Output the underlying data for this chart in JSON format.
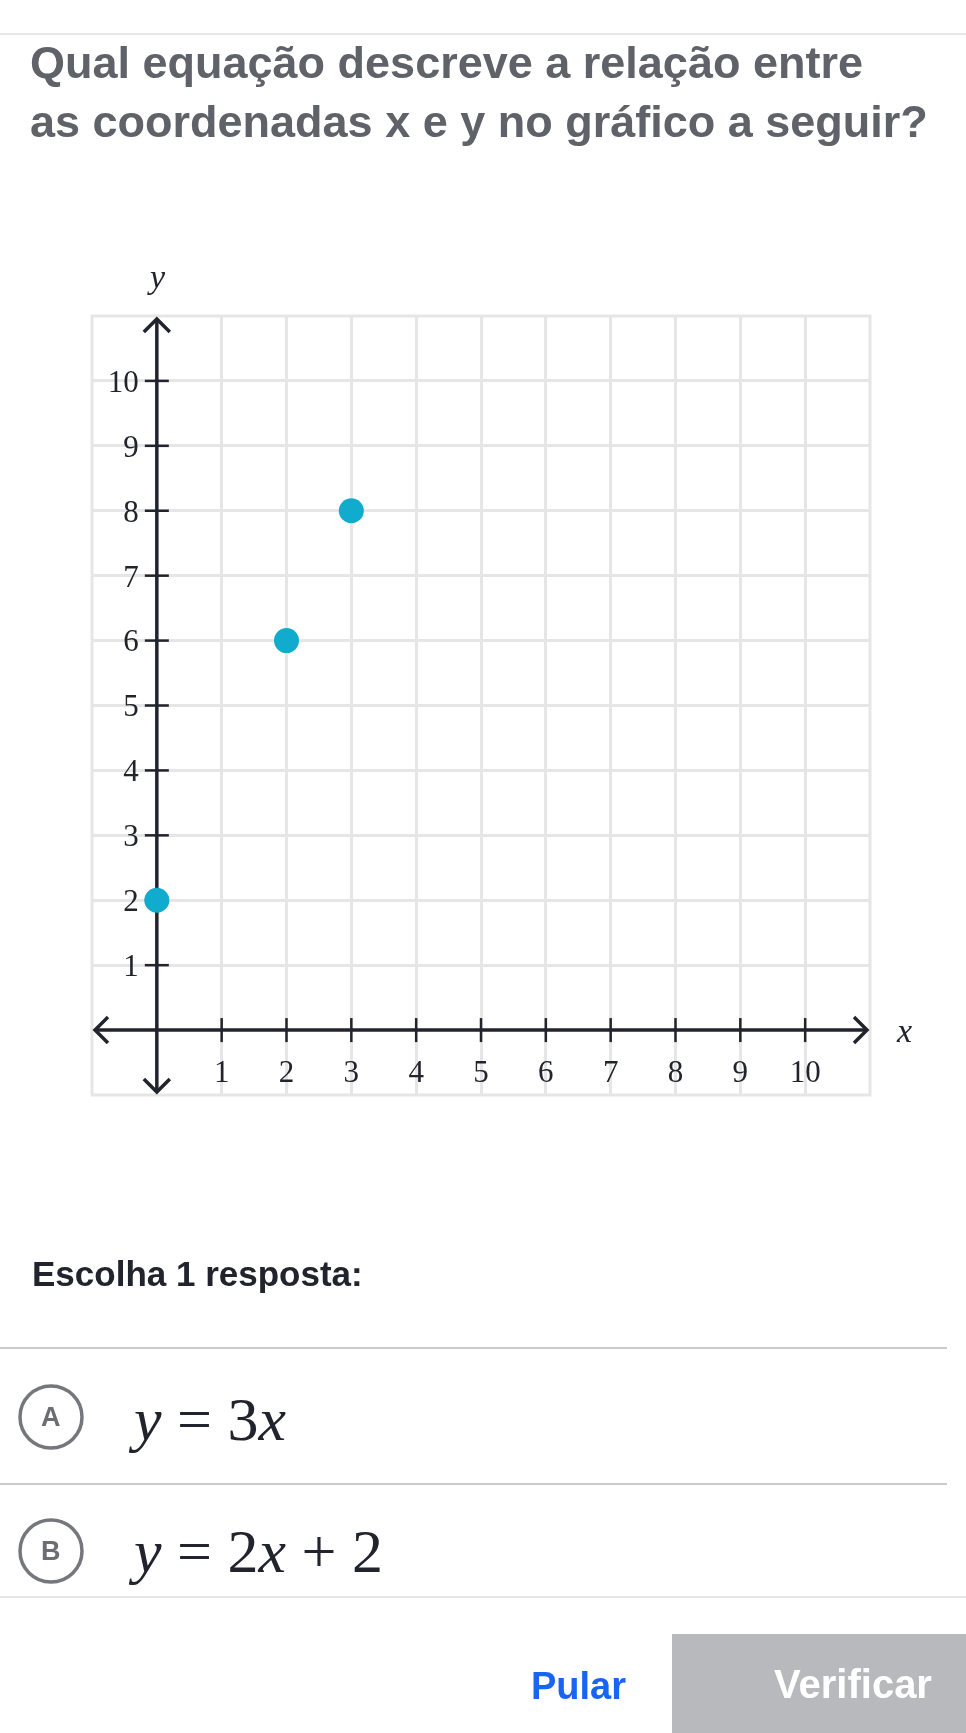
{
  "chart_data": {
    "type": "scatter",
    "title": "Qual equação descreve a relação entre\nas coordenadas x e y no gráfico a seguir?",
    "xlabel": "x",
    "ylabel": "y",
    "x": [
      0,
      2,
      3
    ],
    "values": [
      2,
      6,
      8
    ],
    "color": "#11accd",
    "marker": "circle",
    "xlim": [
      -1,
      11
    ],
    "ylim": [
      -1,
      11
    ],
    "xticks": [
      1,
      2,
      3,
      4,
      5,
      6,
      7,
      8,
      9,
      10
    ],
    "yticks": [
      1,
      2,
      3,
      4,
      5,
      6,
      7,
      8,
      9,
      10
    ],
    "grid": true,
    "annotations": [
      "Escolha 1 resposta:",
      "A",
      "y = 3x",
      "B",
      "y = 2x + 2",
      "Pular",
      "Verificar"
    ]
  }
}
